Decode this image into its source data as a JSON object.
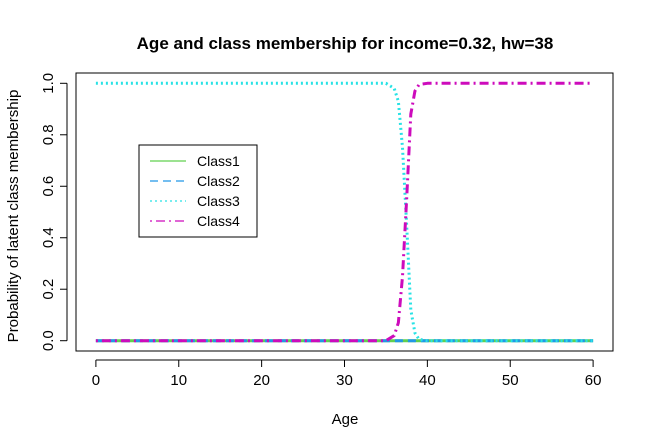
{
  "chart_data": {
    "type": "line",
    "title": "Age and class membership for income=0.32, hw=38",
    "xlabel": "Age",
    "ylabel": "Probability of latent class membership",
    "xlim": [
      -2.4,
      62.4
    ],
    "ylim": [
      -0.04,
      1.04
    ],
    "xticks": [
      0,
      10,
      20,
      30,
      40,
      50,
      60
    ],
    "yticks": [
      0.0,
      0.2,
      0.4,
      0.6,
      0.8,
      1.0
    ],
    "xtick_labels": [
      "0",
      "10",
      "20",
      "30",
      "40",
      "50",
      "60"
    ],
    "ytick_labels": [
      "0.0",
      "0.2",
      "0.4",
      "0.6",
      "0.8",
      "1.0"
    ],
    "legend_position": "top-left",
    "grid": false,
    "series": [
      {
        "name": "Class1",
        "color": "#61d04f",
        "dash": "solid",
        "x": [
          0,
          10,
          20,
          30,
          36,
          37,
          38,
          40,
          50,
          60
        ],
        "y": [
          0.0,
          0.0,
          0.0,
          0.0,
          0.0,
          0.0,
          0.0,
          0.0,
          0.0,
          0.0
        ]
      },
      {
        "name": "Class2",
        "color": "#2297e6",
        "dash": "dashed",
        "x": [
          0,
          10,
          20,
          30,
          36,
          37,
          38,
          40,
          50,
          60
        ],
        "y": [
          0.0,
          0.0,
          0.0,
          0.0,
          0.0,
          0.0,
          0.0,
          0.0,
          0.0,
          0.0
        ]
      },
      {
        "name": "Class3",
        "color": "#28e2e5",
        "dash": "dotted",
        "x": [
          0,
          10,
          20,
          30,
          35,
          36,
          36.5,
          37,
          37.5,
          38,
          38.5,
          39,
          40,
          50,
          60
        ],
        "y": [
          1.0,
          1.0,
          1.0,
          1.0,
          1.0,
          0.98,
          0.93,
          0.75,
          0.45,
          0.12,
          0.03,
          0.005,
          0.0,
          0.0,
          0.0
        ]
      },
      {
        "name": "Class4",
        "color": "#cd0bbc",
        "dash": "dotdash",
        "x": [
          0,
          10,
          20,
          30,
          35,
          36,
          36.5,
          37,
          37.5,
          38,
          38.5,
          39,
          40,
          50,
          60
        ],
        "y": [
          0.0,
          0.0,
          0.0,
          0.0,
          0.0,
          0.02,
          0.07,
          0.25,
          0.55,
          0.88,
          0.97,
          0.995,
          1.0,
          1.0,
          1.0
        ]
      }
    ]
  }
}
